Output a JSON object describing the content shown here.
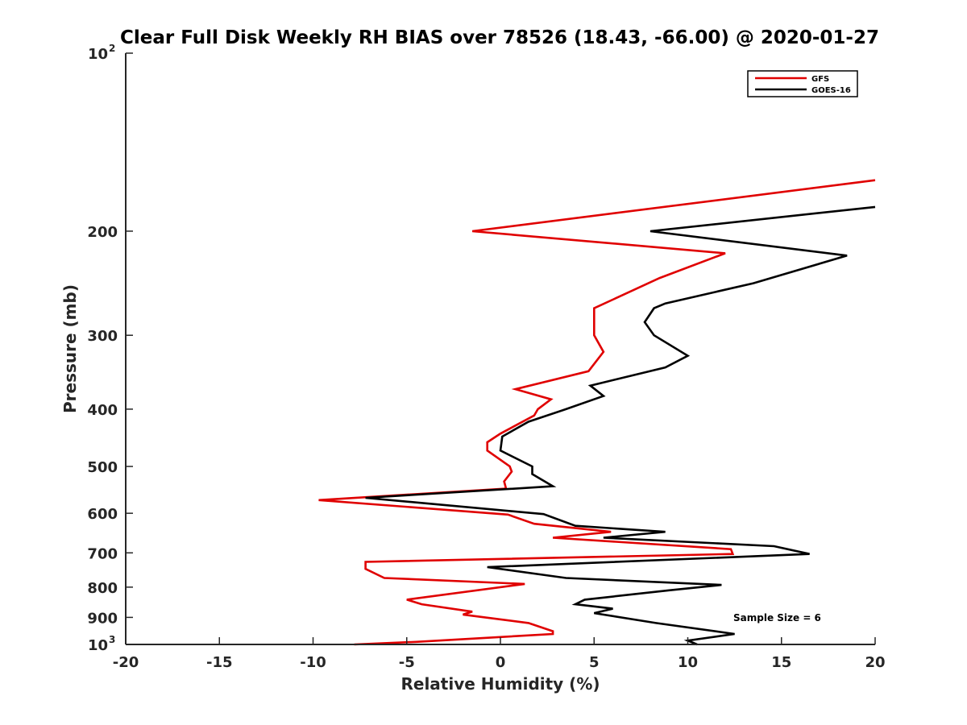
{
  "chart_data": {
    "type": "line",
    "title": "Clear Full Disk Weekly RH BIAS over 78526 (18.43, -66.00) @ 2020-01-27",
    "xlabel": "Relative Humidity (%)",
    "ylabel": "Pressure (mb)",
    "xlim": [
      -20,
      20
    ],
    "ylim": [
      100,
      1000
    ],
    "y_scale": "log",
    "y_reversed": true,
    "grid": false,
    "legend_position": "top-right",
    "x_ticks": [
      "-20",
      "-15",
      "-10",
      "-5",
      "0",
      "5",
      "10",
      "15",
      "20"
    ],
    "y_ticks": [
      {
        "value": 100,
        "label": "10",
        "exp": "2"
      },
      {
        "value": 200,
        "label": "200"
      },
      {
        "value": 300,
        "label": "300"
      },
      {
        "value": 400,
        "label": "400"
      },
      {
        "value": 500,
        "label": "500"
      },
      {
        "value": 600,
        "label": "600"
      },
      {
        "value": 700,
        "label": "700"
      },
      {
        "value": 800,
        "label": "800"
      },
      {
        "value": 900,
        "label": "900"
      },
      {
        "value": 1000,
        "label": "10",
        "exp": "3"
      }
    ],
    "annotation": "Sample Size = 6",
    "series": [
      {
        "name": "GFS",
        "color": "#e00000",
        "points": [
          [
            20.0,
            164
          ],
          [
            -1.5,
            200
          ],
          [
            12.0,
            218
          ],
          [
            8.5,
            240
          ],
          [
            5.0,
            270
          ],
          [
            5.0,
            285
          ],
          [
            5.0,
            300
          ],
          [
            5.5,
            320
          ],
          [
            4.7,
            345
          ],
          [
            0.8,
            370
          ],
          [
            2.7,
            385
          ],
          [
            2.0,
            400
          ],
          [
            1.8,
            410
          ],
          [
            0.0,
            440
          ],
          [
            -0.7,
            455
          ],
          [
            -0.7,
            470
          ],
          [
            0.5,
            500
          ],
          [
            0.6,
            510
          ],
          [
            0.2,
            530
          ],
          [
            0.3,
            545
          ],
          [
            -9.7,
            570
          ],
          [
            0.4,
            603
          ],
          [
            1.8,
            625
          ],
          [
            5.9,
            645
          ],
          [
            2.8,
            660
          ],
          [
            12.3,
            690
          ],
          [
            12.4,
            703
          ],
          [
            -7.2,
            725
          ],
          [
            -7.2,
            745
          ],
          [
            -6.2,
            772
          ],
          [
            1.3,
            790
          ],
          [
            -5.0,
            840
          ],
          [
            -4.2,
            855
          ],
          [
            -1.5,
            880
          ],
          [
            -2.0,
            890
          ],
          [
            1.5,
            920
          ],
          [
            2.8,
            950
          ],
          [
            2.8,
            960
          ],
          [
            -4.5,
            990
          ],
          [
            -7.8,
            1000
          ]
        ]
      },
      {
        "name": "GOES-16",
        "color": "#000000",
        "points": [
          [
            20.0,
            182
          ],
          [
            8.0,
            200
          ],
          [
            18.5,
            220
          ],
          [
            13.5,
            245
          ],
          [
            8.8,
            265
          ],
          [
            8.2,
            270
          ],
          [
            7.7,
            285
          ],
          [
            8.2,
            300
          ],
          [
            10.0,
            325
          ],
          [
            8.8,
            340
          ],
          [
            4.8,
            365
          ],
          [
            5.5,
            380
          ],
          [
            3.5,
            400
          ],
          [
            1.5,
            420
          ],
          [
            0.1,
            445
          ],
          [
            0.0,
            470
          ],
          [
            1.7,
            500
          ],
          [
            1.7,
            515
          ],
          [
            2.8,
            540
          ],
          [
            -7.2,
            565
          ],
          [
            2.3,
            602
          ],
          [
            4.0,
            630
          ],
          [
            8.8,
            645
          ],
          [
            5.5,
            660
          ],
          [
            14.6,
            682
          ],
          [
            16.5,
            703
          ],
          [
            -0.7,
            740
          ],
          [
            3.5,
            772
          ],
          [
            11.8,
            793
          ],
          [
            9.0,
            810
          ],
          [
            4.5,
            840
          ],
          [
            4.0,
            855
          ],
          [
            6.0,
            870
          ],
          [
            5.0,
            885
          ],
          [
            8.3,
            920
          ],
          [
            12.5,
            960
          ],
          [
            10.0,
            985
          ],
          [
            10.5,
            1000
          ]
        ]
      }
    ]
  }
}
